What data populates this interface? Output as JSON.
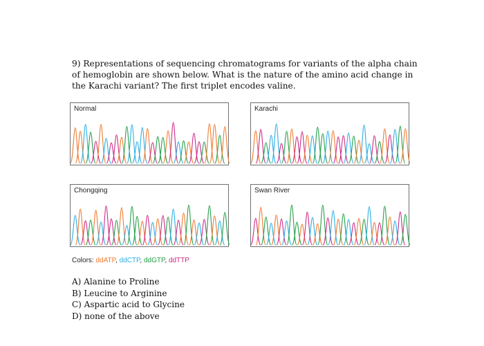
{
  "question": {
    "text": "9) Representations of sequencing chromatograms for variants of the alpha chain of hemoglobin are shown below. What is the nature of the amino acid change in the Karachi variant? The first triplet encodes valine."
  },
  "panels": [
    {
      "label": "Normal",
      "peaks": [
        "A",
        "A",
        "C",
        "G",
        "T",
        "A",
        "C",
        "T",
        "T",
        "A",
        "G",
        "C",
        "C",
        "C",
        "A",
        "T",
        "G",
        "G",
        "A",
        "T",
        "C",
        "G",
        "A",
        "T",
        "T",
        "G",
        "A",
        "A",
        "G",
        "A"
      ]
    },
    {
      "label": "Karachi",
      "peaks": [
        "A",
        "T",
        "G",
        "C",
        "C",
        "T",
        "G",
        "A",
        "T",
        "T",
        "A",
        "C",
        "G",
        "G",
        "C",
        "A",
        "T",
        "T",
        "C",
        "G",
        "A",
        "C",
        "C",
        "T",
        "G",
        "A",
        "T",
        "C",
        "G",
        "A"
      ]
    },
    {
      "label": "Chongqing",
      "peaks": [
        "C",
        "A",
        "T",
        "G",
        "A",
        "C",
        "T",
        "T",
        "G",
        "A",
        "C",
        "G",
        "G",
        "A",
        "T",
        "C",
        "A",
        "T",
        "G",
        "C",
        "T",
        "A",
        "G",
        "A",
        "C",
        "T",
        "G",
        "A",
        "C",
        "G"
      ]
    },
    {
      "label": "Swan River",
      "peaks": [
        "T",
        "A",
        "G",
        "C",
        "A",
        "T",
        "C",
        "G",
        "G",
        "A",
        "T",
        "C",
        "A",
        "G",
        "T",
        "C",
        "A",
        "G",
        "C",
        "T",
        "A",
        "G",
        "C",
        "A",
        "T",
        "G",
        "A",
        "C",
        "T",
        "G"
      ]
    }
  ],
  "colors_line": {
    "label": "Colors:",
    "items": [
      {
        "name": "ddATP",
        "base": "A",
        "color": "#ef7a2e"
      },
      {
        "name": "ddCTP",
        "base": "C",
        "color": "#2aaee3"
      },
      {
        "name": "ddGTP",
        "base": "G",
        "color": "#23a049"
      },
      {
        "name": "ddTTP",
        "base": "T",
        "color": "#cc2a87"
      }
    ]
  },
  "answers": [
    "A) Alanine to Proline",
    "B) Leucine to Arginine",
    "C) Aspartic acid to Glycine",
    "D) none of the above"
  ]
}
